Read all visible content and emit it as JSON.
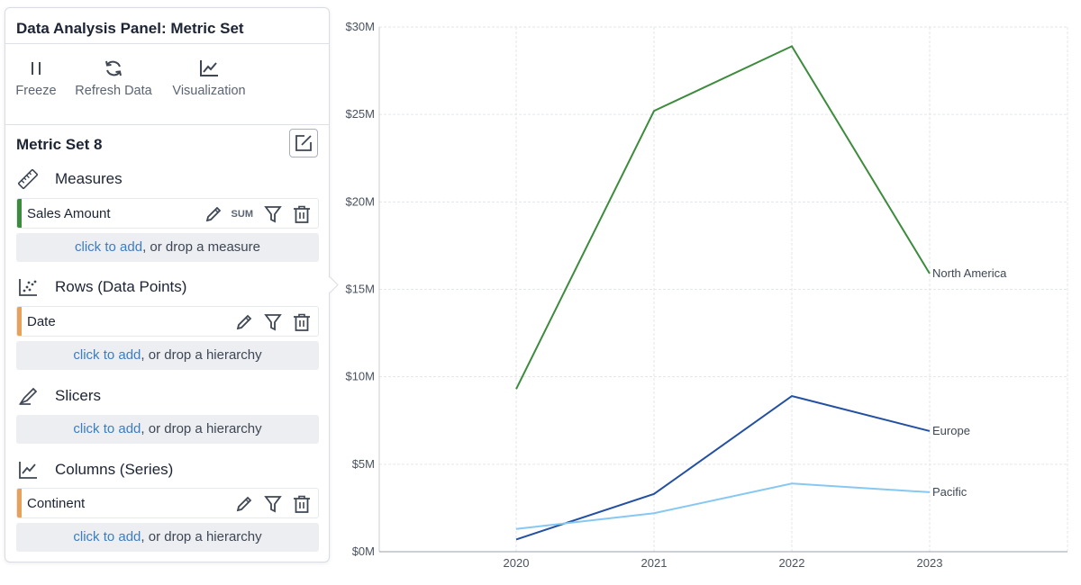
{
  "panel": {
    "title": "Data Analysis Panel: Metric Set",
    "toolbar": [
      {
        "label": "Freeze",
        "icon": "pause-icon"
      },
      {
        "label": "Refresh Data",
        "icon": "refresh-icon"
      },
      {
        "label": "Visualization",
        "icon": "line-chart-icon"
      }
    ],
    "metric_set_title": "Metric Set 8",
    "sections": {
      "measures": {
        "label": "Measures",
        "items": [
          {
            "name": "Sales Amount",
            "aggregation": "SUM",
            "color": "#3d8b3d"
          }
        ],
        "drop_link": "click to add",
        "drop_text": ", or drop a measure"
      },
      "rows": {
        "label": "Rows (Data Points)",
        "items": [
          {
            "name": "Date",
            "color": "#e8a15a"
          }
        ],
        "drop_link": "click to add",
        "drop_text": ", or drop a hierarchy"
      },
      "slicers": {
        "label": "Slicers",
        "drop_link": "click to add",
        "drop_text": ", or drop a hierarchy"
      },
      "columns": {
        "label": "Columns (Series)",
        "items": [
          {
            "name": "Continent",
            "color": "#e8a15a"
          }
        ],
        "drop_link": "click to add",
        "drop_text": ", or drop a hierarchy"
      }
    }
  },
  "chart_data": {
    "type": "line",
    "x": [
      "2020",
      "2021",
      "2022",
      "2023"
    ],
    "y_ticks": [
      "$0M",
      "$5M",
      "$10M",
      "$15M",
      "$20M",
      "$25M",
      "$30M"
    ],
    "ylim": [
      0,
      30
    ],
    "grid": true,
    "series": [
      {
        "name": "North America",
        "values": [
          9.3,
          25.2,
          28.9,
          15.9
        ],
        "color": "#3d8b3d"
      },
      {
        "name": "Europe",
        "values": [
          0.7,
          3.3,
          8.9,
          6.9
        ],
        "color": "#2350a0"
      },
      {
        "name": "Pacific",
        "values": [
          1.3,
          2.2,
          3.9,
          3.4
        ],
        "color": "#86c8f2"
      }
    ]
  }
}
